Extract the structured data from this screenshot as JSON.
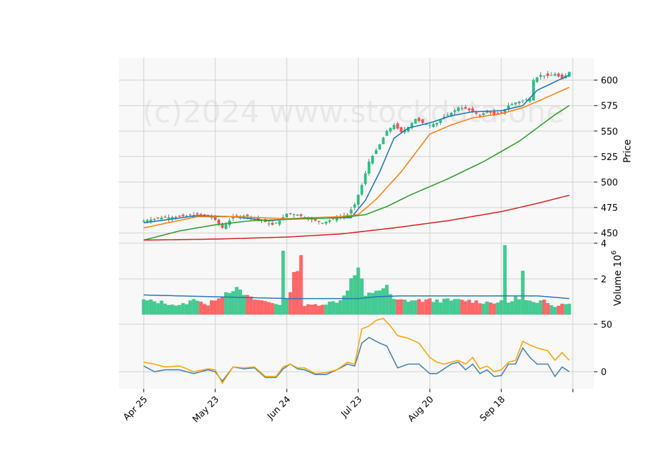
{
  "watermark": "(c)2024 www.stockdata.one",
  "colors": {
    "up": "#26c281",
    "down": "#ff4d4d",
    "ma_blue": "#1f77b4",
    "ma_orange": "#ff7f0e",
    "ma_green": "#2ca02c",
    "ma_red": "#d62728",
    "vol_ma": "#1f77b4",
    "osc1": "#4682b4",
    "osc2": "#ffa500",
    "panel_bg": "#f8f8f8",
    "grid": "#d0d0d0"
  },
  "chart_data": [
    {
      "type": "candlestick",
      "ylabel": "Price",
      "ylim": [
        440,
        622
      ],
      "yticks": [
        450,
        475,
        500,
        525,
        550,
        575,
        600
      ],
      "xticks": [
        {
          "index": 0,
          "label": "Apr 25"
        },
        {
          "index": 20,
          "label": "May 23"
        },
        {
          "index": 40,
          "label": "Jun 24"
        },
        {
          "index": 60,
          "label": "Jul 23"
        },
        {
          "index": 80,
          "label": "Aug 20"
        },
        {
          "index": 100,
          "label": "Sep 18"
        },
        {
          "index": 120,
          "label": ""
        }
      ],
      "n_bars": 120,
      "price_anchors": [
        [
          0,
          462
        ],
        [
          5,
          465
        ],
        [
          10,
          466
        ],
        [
          15,
          468
        ],
        [
          18,
          467
        ],
        [
          20,
          463
        ],
        [
          22,
          455
        ],
        [
          25,
          466
        ],
        [
          28,
          467
        ],
        [
          30,
          466
        ],
        [
          33,
          462
        ],
        [
          36,
          458
        ],
        [
          38,
          462
        ],
        [
          40,
          469
        ],
        [
          43,
          468
        ],
        [
          46,
          464
        ],
        [
          50,
          460
        ],
        [
          54,
          465
        ],
        [
          57,
          468
        ],
        [
          59,
          478
        ],
        [
          61,
          497
        ],
        [
          63,
          520
        ],
        [
          66,
          537
        ],
        [
          68,
          550
        ],
        [
          70,
          556
        ],
        [
          72,
          549
        ],
        [
          74,
          554
        ],
        [
          76,
          562
        ],
        [
          78,
          558
        ],
        [
          80,
          556
        ],
        [
          82,
          558
        ],
        [
          84,
          564
        ],
        [
          86,
          568
        ],
        [
          88,
          573
        ],
        [
          90,
          572
        ],
        [
          92,
          569
        ],
        [
          94,
          565
        ],
        [
          96,
          570
        ],
        [
          98,
          566
        ],
        [
          100,
          568
        ],
        [
          102,
          575
        ],
        [
          104,
          578
        ],
        [
          106,
          580
        ],
        [
          108,
          582
        ],
        [
          109,
          600
        ],
        [
          111,
          605
        ],
        [
          113,
          604
        ],
        [
          115,
          606
        ],
        [
          117,
          601
        ],
        [
          119,
          608
        ]
      ],
      "ma_series": [
        {
          "key": "ma_blue",
          "anchors": [
            [
              0,
              460
            ],
            [
              15,
              467
            ],
            [
              25,
              466
            ],
            [
              35,
              462
            ],
            [
              45,
              465
            ],
            [
              58,
              465
            ],
            [
              62,
              482
            ],
            [
              66,
              510
            ],
            [
              70,
              543
            ],
            [
              74,
              553
            ],
            [
              80,
              558
            ],
            [
              86,
              565
            ],
            [
              92,
              569
            ],
            [
              100,
              570
            ],
            [
              106,
              575
            ],
            [
              110,
              590
            ],
            [
              119,
              605
            ]
          ]
        },
        {
          "key": "ma_orange",
          "anchors": [
            [
              0,
              455
            ],
            [
              15,
              466
            ],
            [
              25,
              466
            ],
            [
              40,
              464
            ],
            [
              55,
              466
            ],
            [
              60,
              468
            ],
            [
              65,
              483
            ],
            [
              72,
              510
            ],
            [
              80,
              547
            ],
            [
              86,
              556
            ],
            [
              92,
              563
            ],
            [
              100,
              567
            ],
            [
              106,
              573
            ],
            [
              112,
              582
            ],
            [
              119,
              593
            ]
          ]
        },
        {
          "key": "ma_green",
          "anchors": [
            [
              0,
              443
            ],
            [
              10,
              452
            ],
            [
              20,
              458
            ],
            [
              30,
              462
            ],
            [
              45,
              464
            ],
            [
              55,
              465
            ],
            [
              62,
              468
            ],
            [
              68,
              476
            ],
            [
              75,
              488
            ],
            [
              85,
              503
            ],
            [
              95,
              520
            ],
            [
              105,
              540
            ],
            [
              110,
              553
            ],
            [
              115,
              566
            ],
            [
              119,
              575
            ]
          ]
        },
        {
          "key": "ma_red",
          "anchors": [
            [
              0,
              443
            ],
            [
              20,
              444
            ],
            [
              40,
              446
            ],
            [
              55,
              449
            ],
            [
              60,
              451
            ],
            [
              70,
              455
            ],
            [
              85,
              462
            ],
            [
              100,
              471
            ],
            [
              110,
              479
            ],
            [
              119,
              487
            ]
          ]
        }
      ]
    },
    {
      "type": "bar",
      "ylabel": "Volume  10",
      "ylabel_exponent": "6",
      "ylim": [
        0,
        4
      ],
      "yticks": [
        2,
        4
      ],
      "volume_anchors": [
        [
          0,
          0.8
        ],
        [
          5,
          0.7
        ],
        [
          10,
          0.5
        ],
        [
          15,
          0.9
        ],
        [
          18,
          0.5
        ],
        [
          20,
          0.9
        ],
        [
          25,
          1.5
        ],
        [
          30,
          0.9
        ],
        [
          35,
          0.7
        ],
        [
          38,
          0.6
        ],
        [
          39,
          3.4
        ],
        [
          40,
          0.8
        ],
        [
          44,
          3.5
        ],
        [
          45,
          0.5
        ],
        [
          50,
          0.6
        ],
        [
          55,
          0.8
        ],
        [
          60,
          2.6
        ],
        [
          62,
          1.0
        ],
        [
          65,
          1.4
        ],
        [
          68,
          1.5
        ],
        [
          70,
          0.8
        ],
        [
          75,
          0.8
        ],
        [
          80,
          0.8
        ],
        [
          85,
          0.8
        ],
        [
          90,
          0.8
        ],
        [
          95,
          0.7
        ],
        [
          100,
          0.7
        ],
        [
          101,
          3.8
        ],
        [
          102,
          0.7
        ],
        [
          105,
          1.0
        ],
        [
          106,
          2.3
        ],
        [
          107,
          0.8
        ],
        [
          110,
          0.6
        ],
        [
          112,
          0.8
        ],
        [
          115,
          0.5
        ],
        [
          119,
          0.7
        ]
      ],
      "volume_ma_anchors": [
        [
          0,
          1.1
        ],
        [
          20,
          1.0
        ],
        [
          40,
          0.9
        ],
        [
          50,
          0.9
        ],
        [
          55,
          0.9
        ],
        [
          60,
          0.9
        ],
        [
          65,
          1.0
        ],
        [
          72,
          1.05
        ],
        [
          80,
          1.05
        ],
        [
          90,
          1.05
        ],
        [
          100,
          1.05
        ],
        [
          110,
          1.05
        ],
        [
          119,
          0.9
        ]
      ]
    },
    {
      "type": "line",
      "ylim": [
        -18,
        60
      ],
      "yticks": [
        0,
        50
      ],
      "series": [
        {
          "key": "osc1",
          "anchors": [
            [
              0,
              6
            ],
            [
              3,
              0
            ],
            [
              6,
              2
            ],
            [
              10,
              2
            ],
            [
              14,
              -2
            ],
            [
              18,
              2
            ],
            [
              20,
              0
            ],
            [
              22,
              -10
            ],
            [
              25,
              5
            ],
            [
              28,
              3
            ],
            [
              31,
              4
            ],
            [
              34,
              -6
            ],
            [
              37,
              -6
            ],
            [
              39,
              3
            ],
            [
              41,
              8
            ],
            [
              43,
              3
            ],
            [
              45,
              2
            ],
            [
              48,
              -3
            ],
            [
              51,
              -3
            ],
            [
              54,
              2
            ],
            [
              57,
              8
            ],
            [
              59,
              6
            ],
            [
              61,
              30
            ],
            [
              63,
              36
            ],
            [
              66,
              30
            ],
            [
              68,
              27
            ],
            [
              71,
              4
            ],
            [
              74,
              8
            ],
            [
              77,
              8
            ],
            [
              80,
              -2
            ],
            [
              82,
              -2
            ],
            [
              84,
              3
            ],
            [
              86,
              8
            ],
            [
              88,
              10
            ],
            [
              90,
              2
            ],
            [
              92,
              8
            ],
            [
              94,
              -2
            ],
            [
              96,
              2
            ],
            [
              98,
              -5
            ],
            [
              100,
              -4
            ],
            [
              102,
              8
            ],
            [
              104,
              8
            ],
            [
              106,
              25
            ],
            [
              108,
              15
            ],
            [
              110,
              8
            ],
            [
              113,
              8
            ],
            [
              115,
              -5
            ],
            [
              117,
              5
            ],
            [
              119,
              0
            ]
          ]
        },
        {
          "key": "osc2",
          "anchors": [
            [
              0,
              10
            ],
            [
              3,
              8
            ],
            [
              6,
              5
            ],
            [
              10,
              6
            ],
            [
              14,
              0
            ],
            [
              18,
              3
            ],
            [
              20,
              2
            ],
            [
              22,
              -12
            ],
            [
              25,
              5
            ],
            [
              28,
              4
            ],
            [
              31,
              5
            ],
            [
              34,
              -5
            ],
            [
              37,
              -5
            ],
            [
              39,
              5
            ],
            [
              41,
              8
            ],
            [
              43,
              4
            ],
            [
              45,
              4
            ],
            [
              48,
              -2
            ],
            [
              51,
              -1
            ],
            [
              54,
              2
            ],
            [
              57,
              10
            ],
            [
              59,
              8
            ],
            [
              61,
              45
            ],
            [
              63,
              48
            ],
            [
              65,
              54
            ],
            [
              67,
              56
            ],
            [
              69,
              48
            ],
            [
              71,
              38
            ],
            [
              74,
              35
            ],
            [
              77,
              30
            ],
            [
              80,
              15
            ],
            [
              82,
              10
            ],
            [
              84,
              8
            ],
            [
              86,
              10
            ],
            [
              88,
              12
            ],
            [
              90,
              8
            ],
            [
              92,
              15
            ],
            [
              94,
              3
            ],
            [
              96,
              6
            ],
            [
              98,
              0
            ],
            [
              100,
              2
            ],
            [
              102,
              10
            ],
            [
              104,
              12
            ],
            [
              106,
              32
            ],
            [
              108,
              28
            ],
            [
              110,
              25
            ],
            [
              113,
              22
            ],
            [
              115,
              12
            ],
            [
              117,
              20
            ],
            [
              119,
              12
            ]
          ]
        }
      ]
    }
  ]
}
